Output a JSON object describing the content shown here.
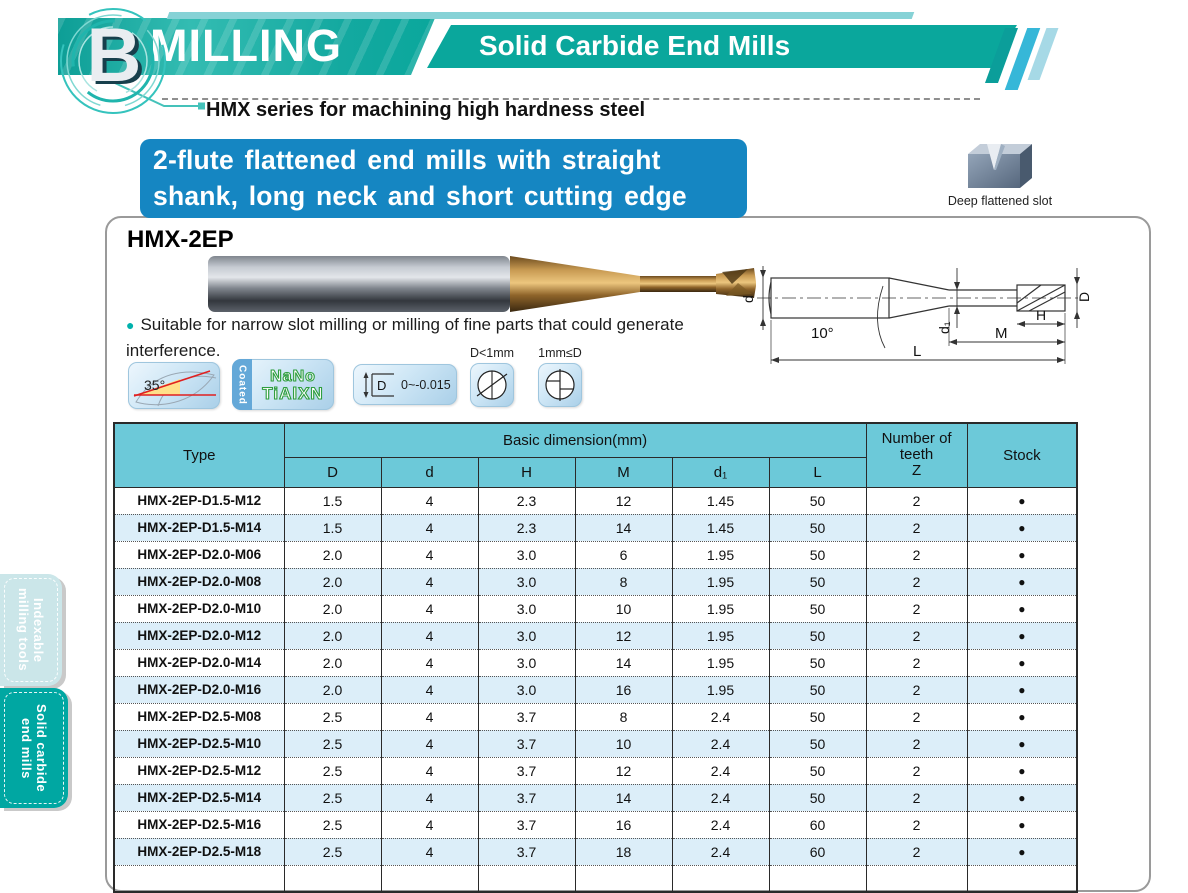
{
  "header": {
    "section_letter": "B",
    "title": "MILLING",
    "subtitle": "Solid Carbide End Mills",
    "series_note": "HMX series for machining high hardness steel"
  },
  "banner": {
    "line1": "2-flute flattened end mills with straight",
    "line2": "shank, long neck and short cutting edge"
  },
  "slot_feature": {
    "label": "Deep flattened slot"
  },
  "product": {
    "name": "HMX-2EP",
    "description": "Suitable for narrow slot milling or milling of fine parts that could generate interference."
  },
  "features": {
    "helix_angle": "35°",
    "coated_strip": "Coated",
    "coating_line1": "NaNo",
    "coating_line2": "TiAlXN",
    "tolerance_letter": "D",
    "tolerance_value": "0~-0.015",
    "small_dia_label": "D<1mm",
    "large_dia_label": "1mm≤D"
  },
  "diagram": {
    "shank_dia": "d",
    "angle": "10°",
    "neck_dia": "d₁",
    "cut_len": "H",
    "neck_len": "M",
    "tip_dia": "D",
    "overall_len": "L"
  },
  "table": {
    "col_type": "Type",
    "col_group": "Basic dimension(mm)",
    "col_dims": [
      "D",
      "d",
      "H",
      "M",
      "d₁",
      "L"
    ],
    "col_teeth_l1": "Number of",
    "col_teeth_l2": "teeth",
    "col_teeth_l3": "Z",
    "col_stock": "Stock",
    "rows": [
      [
        "HMX-2EP-D1.5-M12",
        "1.5",
        "4",
        "2.3",
        "12",
        "1.45",
        "50",
        "2",
        "●"
      ],
      [
        "HMX-2EP-D1.5-M14",
        "1.5",
        "4",
        "2.3",
        "14",
        "1.45",
        "50",
        "2",
        "●"
      ],
      [
        "HMX-2EP-D2.0-M06",
        "2.0",
        "4",
        "3.0",
        "6",
        "1.95",
        "50",
        "2",
        "●"
      ],
      [
        "HMX-2EP-D2.0-M08",
        "2.0",
        "4",
        "3.0",
        "8",
        "1.95",
        "50",
        "2",
        "●"
      ],
      [
        "HMX-2EP-D2.0-M10",
        "2.0",
        "4",
        "3.0",
        "10",
        "1.95",
        "50",
        "2",
        "●"
      ],
      [
        "HMX-2EP-D2.0-M12",
        "2.0",
        "4",
        "3.0",
        "12",
        "1.95",
        "50",
        "2",
        "●"
      ],
      [
        "HMX-2EP-D2.0-M14",
        "2.0",
        "4",
        "3.0",
        "14",
        "1.95",
        "50",
        "2",
        "●"
      ],
      [
        "HMX-2EP-D2.0-M16",
        "2.0",
        "4",
        "3.0",
        "16",
        "1.95",
        "50",
        "2",
        "●"
      ],
      [
        "HMX-2EP-D2.5-M08",
        "2.5",
        "4",
        "3.7",
        "8",
        "2.4",
        "50",
        "2",
        "●"
      ],
      [
        "HMX-2EP-D2.5-M10",
        "2.5",
        "4",
        "3.7",
        "10",
        "2.4",
        "50",
        "2",
        "●"
      ],
      [
        "HMX-2EP-D2.5-M12",
        "2.5",
        "4",
        "3.7",
        "12",
        "2.4",
        "50",
        "2",
        "●"
      ],
      [
        "HMX-2EP-D2.5-M14",
        "2.5",
        "4",
        "3.7",
        "14",
        "2.4",
        "50",
        "2",
        "●"
      ],
      [
        "HMX-2EP-D2.5-M16",
        "2.5",
        "4",
        "3.7",
        "16",
        "2.4",
        "60",
        "2",
        "●"
      ],
      [
        "HMX-2EP-D2.5-M18",
        "2.5",
        "4",
        "3.7",
        "18",
        "2.4",
        "60",
        "2",
        "●"
      ]
    ]
  },
  "sidebar": {
    "tabs": [
      {
        "line1": "Indexable",
        "line2": "milling tools"
      },
      {
        "line1": "Solid carbide",
        "line2": "end mills"
      }
    ]
  },
  "colors": {
    "teal": "#0aa79c",
    "banner_blue": "#1586c2",
    "table_header": "#6cc9d9",
    "row_alt": "#dceef9",
    "tab_active": "#00a7a2",
    "tab_inactive": "#cbe6e9"
  }
}
